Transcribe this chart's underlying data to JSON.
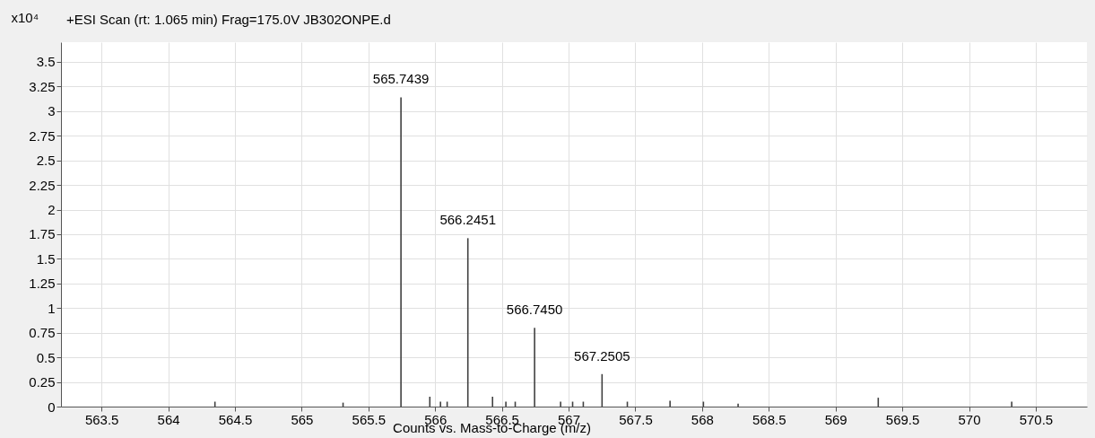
{
  "chart_data": {
    "type": "bar",
    "title": "+ESI Scan (rt: 1.065 min) Frag=175.0V JB302ONPE.d",
    "xlabel": "Counts vs. Mass-to-Charge (m/z)",
    "ylabel": "x10⁴",
    "x": [
      564.35,
      565.31,
      565.7439,
      565.96,
      566.04,
      566.09,
      566.2451,
      566.43,
      566.53,
      566.6,
      566.745,
      566.94,
      567.03,
      567.11,
      567.2505,
      567.44,
      567.76,
      568.01,
      568.27,
      569.32,
      570.32
    ],
    "series": [
      {
        "color": "#404040",
        "values": [
          0.05,
          0.04,
          3.14,
          0.1,
          0.05,
          0.05,
          1.71,
          0.1,
          0.05,
          0.05,
          0.8,
          0.05,
          0.05,
          0.05,
          0.33,
          0.05,
          0.06,
          0.05,
          0.03,
          0.09,
          0.05
        ]
      }
    ],
    "annotations": [
      {
        "text": "565.7439",
        "x": 565.7439,
        "y": 3.14
      },
      {
        "text": "566.2451",
        "x": 566.2451,
        "y": 1.71
      },
      {
        "text": "566.7450",
        "x": 566.745,
        "y": 0.8
      },
      {
        "text": "567.2505",
        "x": 567.2505,
        "y": 0.33
      }
    ],
    "xlim": [
      563.23,
      570.85
    ],
    "xticks": [
      563.5,
      564,
      564.5,
      565,
      565.5,
      566,
      566.5,
      567,
      567.5,
      568,
      568.5,
      569,
      569.5,
      570,
      570.5
    ],
    "ylim": [
      0,
      3.7
    ],
    "yticks": [
      0,
      0.25,
      0.5,
      0.75,
      1,
      1.25,
      1.5,
      1.75,
      2,
      2.25,
      2.5,
      2.75,
      3,
      3.25,
      3.5
    ],
    "grid": true,
    "legend": false
  }
}
